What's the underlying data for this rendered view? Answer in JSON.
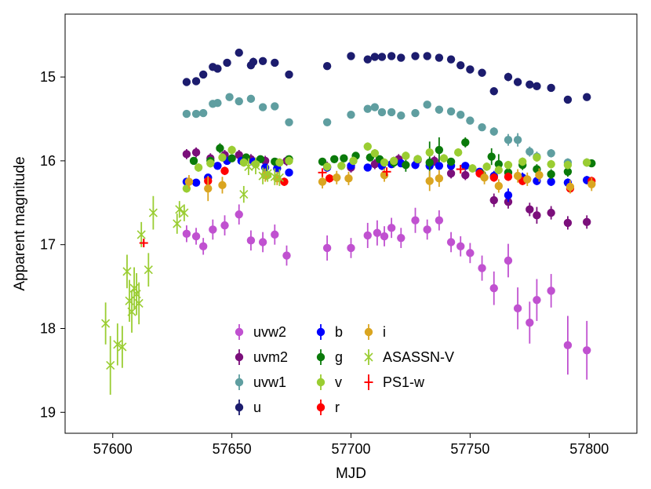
{
  "chart_data": {
    "type": "scatter",
    "xlabel": "MJD",
    "ylabel": "Apparent magnitude",
    "xlim": [
      57580,
      57820
    ],
    "ylim": [
      19.25,
      14.25
    ],
    "y_inverted": true,
    "xticks": [
      57600,
      57650,
      57700,
      57750,
      57800
    ],
    "yticks": [
      15,
      16,
      17,
      18,
      19
    ],
    "grid": false,
    "legend_position": "bottom-center",
    "series": [
      {
        "name": "uvw2",
        "color": "#c051d0",
        "marker": "circle",
        "x": [
          57631,
          57635,
          57638,
          57642,
          57647,
          57653,
          57658,
          57663,
          57668,
          57673,
          57690,
          57700,
          57707,
          57711,
          57714,
          57717,
          57721,
          57727,
          57732,
          57737,
          57742,
          57746,
          57750,
          57755,
          57760,
          57766,
          57770,
          57775,
          57778,
          57784,
          57791,
          57799
        ],
        "y": [
          16.87,
          16.9,
          17.02,
          16.82,
          16.77,
          16.64,
          16.95,
          16.97,
          16.88,
          17.13,
          17.04,
          17.04,
          16.89,
          16.86,
          16.9,
          16.8,
          16.92,
          16.71,
          16.82,
          16.71,
          16.97,
          17.02,
          17.1,
          17.28,
          17.52,
          17.19,
          17.76,
          17.93,
          17.66,
          17.55,
          18.2,
          18.26
        ],
        "yerr": [
          0.1,
          0.1,
          0.1,
          0.12,
          0.12,
          0.12,
          0.12,
          0.12,
          0.12,
          0.12,
          0.15,
          0.12,
          0.15,
          0.15,
          0.12,
          0.12,
          0.12,
          0.15,
          0.12,
          0.12,
          0.12,
          0.12,
          0.12,
          0.15,
          0.2,
          0.2,
          0.25,
          0.25,
          0.25,
          0.2,
          0.35,
          0.35
        ]
      },
      {
        "name": "uvm2",
        "color": "#7b0f7b",
        "marker": "circle",
        "x": [
          57631,
          57635,
          57641,
          57647,
          57653,
          57658,
          57664,
          57669,
          57673,
          57690,
          57700,
          57710,
          57713,
          57720,
          57728,
          57735,
          57742,
          57748,
          57760,
          57766,
          57775,
          57778,
          57784,
          57791,
          57799
        ],
        "y": [
          15.92,
          15.9,
          15.97,
          15.93,
          15.93,
          15.98,
          16.0,
          16.03,
          16.0,
          16.07,
          16.08,
          16.04,
          16.05,
          15.98,
          15.99,
          16.0,
          16.15,
          16.17,
          16.47,
          16.49,
          16.58,
          16.65,
          16.62,
          16.74,
          16.73
        ],
        "yerr": [
          0.06,
          0.06,
          0.06,
          0.06,
          0.06,
          0.06,
          0.06,
          0.06,
          0.06,
          0.06,
          0.06,
          0.06,
          0.06,
          0.06,
          0.06,
          0.06,
          0.06,
          0.06,
          0.08,
          0.08,
          0.08,
          0.1,
          0.08,
          0.08,
          0.08
        ]
      },
      {
        "name": "uvw1",
        "color": "#5f9ea0",
        "marker": "circle",
        "x": [
          57631,
          57635,
          57638,
          57642,
          57644,
          57649,
          57653,
          57658,
          57663,
          57668,
          57674,
          57690,
          57700,
          57707,
          57710,
          57713,
          57717,
          57721,
          57727,
          57732,
          57737,
          57742,
          57746,
          57750,
          57755,
          57760,
          57766,
          57770,
          57775,
          57778,
          57784,
          57791,
          57799
        ],
        "y": [
          15.44,
          15.44,
          15.43,
          15.32,
          15.31,
          15.24,
          15.29,
          15.26,
          15.36,
          15.35,
          15.54,
          15.54,
          15.45,
          15.38,
          15.36,
          15.42,
          15.42,
          15.46,
          15.43,
          15.33,
          15.39,
          15.41,
          15.45,
          15.52,
          15.6,
          15.65,
          15.75,
          15.75,
          15.89,
          15.95,
          15.91,
          16.02,
          16.02
        ],
        "yerr": [
          0.04,
          0.04,
          0.04,
          0.04,
          0.04,
          0.04,
          0.04,
          0.04,
          0.04,
          0.04,
          0.04,
          0.04,
          0.04,
          0.04,
          0.04,
          0.04,
          0.04,
          0.04,
          0.04,
          0.04,
          0.04,
          0.04,
          0.04,
          0.04,
          0.04,
          0.05,
          0.07,
          0.08,
          0.06,
          0.06,
          0.05,
          0.05,
          0.05
        ]
      },
      {
        "name": "u",
        "color": "#1c1c6e",
        "marker": "circle",
        "x": [
          57631,
          57635,
          57638,
          57642,
          57644,
          57648,
          57653,
          57658,
          57659,
          57663,
          57668,
          57674,
          57690,
          57700,
          57707,
          57710,
          57713,
          57717,
          57721,
          57727,
          57732,
          57737,
          57742,
          57746,
          57750,
          57755,
          57760,
          57766,
          57770,
          57775,
          57778,
          57784,
          57791,
          57799
        ],
        "y": [
          15.06,
          15.05,
          14.97,
          14.88,
          14.9,
          14.83,
          14.71,
          14.86,
          14.82,
          14.81,
          14.83,
          14.97,
          14.87,
          14.75,
          14.79,
          14.76,
          14.76,
          14.75,
          14.77,
          14.75,
          14.75,
          14.77,
          14.79,
          14.86,
          14.91,
          14.95,
          15.17,
          15.0,
          15.06,
          15.09,
          15.11,
          15.13,
          15.27,
          15.24
        ],
        "yerr": [
          0.03,
          0.03,
          0.03,
          0.03,
          0.03,
          0.03,
          0.03,
          0.03,
          0.05,
          0.03,
          0.03,
          0.03,
          0.03,
          0.03,
          0.03,
          0.03,
          0.03,
          0.03,
          0.03,
          0.03,
          0.03,
          0.03,
          0.03,
          0.03,
          0.03,
          0.03,
          0.04,
          0.05,
          0.04,
          0.04,
          0.04,
          0.04,
          0.04,
          0.04
        ]
      },
      {
        "name": "b",
        "color": "#0000ff",
        "marker": "circle",
        "x": [
          57631,
          57635,
          57640,
          57644,
          57648,
          57654,
          57659,
          57664,
          57669,
          57674,
          57690,
          57700,
          57707,
          57713,
          57717,
          57721,
          57727,
          57733,
          57737,
          57742,
          57748,
          57754,
          57760,
          57766,
          57772,
          57778,
          57784,
          57791,
          57799
        ],
        "y": [
          16.25,
          16.26,
          16.2,
          16.06,
          16.0,
          16.0,
          16.01,
          16.08,
          16.09,
          16.14,
          16.08,
          16.06,
          16.08,
          16.06,
          16.04,
          16.03,
          16.05,
          16.06,
          16.06,
          16.06,
          16.06,
          16.13,
          16.18,
          16.41,
          16.2,
          16.24,
          16.25,
          16.26,
          16.23
        ],
        "yerr": [
          0.04,
          0.04,
          0.04,
          0.04,
          0.04,
          0.04,
          0.04,
          0.04,
          0.04,
          0.04,
          0.04,
          0.04,
          0.04,
          0.04,
          0.04,
          0.04,
          0.04,
          0.04,
          0.04,
          0.04,
          0.04,
          0.04,
          0.06,
          0.08,
          0.06,
          0.05,
          0.05,
          0.05,
          0.05
        ]
      },
      {
        "name": "g",
        "color": "#0a7a0a",
        "marker": "circle",
        "x": [
          57634,
          57641,
          57645,
          57650,
          57656,
          57662,
          57668,
          57674,
          57688,
          57693,
          57697,
          57702,
          57708,
          57712,
          57718,
          57723,
          57728,
          57733,
          57737,
          57742,
          57748,
          57755,
          57759,
          57762,
          57766,
          57772,
          57778,
          57784,
          57791,
          57801
        ],
        "y": [
          16.0,
          16.0,
          15.85,
          15.97,
          15.96,
          15.98,
          16.01,
          15.98,
          16.01,
          15.98,
          15.97,
          15.94,
          15.96,
          15.98,
          16.02,
          16.05,
          15.98,
          16.02,
          15.87,
          16.01,
          15.78,
          16.16,
          15.95,
          16.04,
          16.14,
          16.05,
          16.1,
          16.16,
          16.13,
          16.03
        ],
        "yerr": [
          0.04,
          0.04,
          0.06,
          0.04,
          0.04,
          0.04,
          0.04,
          0.04,
          0.04,
          0.04,
          0.04,
          0.04,
          0.04,
          0.04,
          0.06,
          0.08,
          0.04,
          0.25,
          0.15,
          0.04,
          0.06,
          0.06,
          0.1,
          0.12,
          0.06,
          0.06,
          0.06,
          0.06,
          0.06,
          0.04
        ]
      },
      {
        "name": "v",
        "color": "#9acd32",
        "marker": "circle",
        "x": [
          57631,
          57636,
          57641,
          57646,
          57650,
          57655,
          57660,
          57665,
          57670,
          57674,
          57690,
          57696,
          57701,
          57707,
          57710,
          57714,
          57718,
          57723,
          57728,
          57733,
          57739,
          57745,
          57751,
          57757,
          57762,
          57766,
          57772,
          57778,
          57784,
          57791,
          57799
        ],
        "y": [
          16.33,
          16.08,
          16.03,
          15.96,
          15.87,
          16.02,
          16.04,
          16.17,
          16.02,
          16.0,
          16.07,
          16.06,
          16.0,
          15.83,
          15.91,
          16.02,
          16.0,
          15.94,
          15.98,
          15.9,
          15.97,
          15.9,
          16.09,
          16.07,
          16.11,
          16.05,
          16.01,
          15.96,
          16.04,
          16.05,
          16.02
        ],
        "yerr": [
          0.05,
          0.05,
          0.05,
          0.05,
          0.05,
          0.05,
          0.05,
          0.05,
          0.05,
          0.05,
          0.05,
          0.05,
          0.05,
          0.05,
          0.05,
          0.05,
          0.05,
          0.05,
          0.05,
          0.05,
          0.05,
          0.05,
          0.05,
          0.05,
          0.05,
          0.05,
          0.05,
          0.05,
          0.05,
          0.05,
          0.05
        ]
      },
      {
        "name": "r",
        "color": "#ff0000",
        "marker": "circle",
        "x": [
          57640,
          57647,
          57672,
          57691,
          57754,
          57760,
          57766,
          57772,
          57792,
          57801
        ],
        "y": [
          16.24,
          16.12,
          16.25,
          16.21,
          16.15,
          16.2,
          16.19,
          16.24,
          16.33,
          16.24
        ],
        "yerr": [
          0.05,
          0.05,
          0.05,
          0.05,
          0.05,
          0.05,
          0.05,
          0.05,
          0.05,
          0.05
        ]
      },
      {
        "name": "i",
        "color": "#daa520",
        "marker": "circle",
        "x": [
          57632,
          57640,
          57646,
          57664,
          57669,
          57688,
          57694,
          57699,
          57714,
          57733,
          57737,
          57756,
          57762,
          57770,
          57774,
          57779,
          57792,
          57801
        ],
        "y": [
          16.25,
          16.33,
          16.29,
          16.17,
          16.21,
          16.25,
          16.2,
          16.21,
          16.17,
          16.24,
          16.21,
          16.2,
          16.3,
          16.18,
          16.22,
          16.17,
          16.31,
          16.28
        ],
        "yerr": [
          0.08,
          0.15,
          0.1,
          0.08,
          0.08,
          0.08,
          0.08,
          0.08,
          0.08,
          0.12,
          0.1,
          0.08,
          0.08,
          0.08,
          0.08,
          0.08,
          0.08,
          0.08
        ]
      },
      {
        "name": "ASASSN-V",
        "color": "#9acd32",
        "marker": "x",
        "x": [
          57597,
          57599,
          57602,
          57604,
          57606,
          57607,
          57608,
          57609,
          57610,
          57611,
          57612,
          57615,
          57617,
          57627,
          57628,
          57630,
          57655,
          57657,
          57660,
          57663,
          57665,
          57668,
          57670
        ],
        "y": [
          17.94,
          18.44,
          18.19,
          18.22,
          17.32,
          17.67,
          17.8,
          17.52,
          17.59,
          17.7,
          16.88,
          17.3,
          16.62,
          16.75,
          16.58,
          16.62,
          16.4,
          16.07,
          16.06,
          16.18,
          16.15,
          16.19,
          16.2
        ],
        "yerr": [
          0.25,
          0.35,
          0.25,
          0.25,
          0.2,
          0.25,
          0.25,
          0.25,
          0.25,
          0.25,
          0.15,
          0.2,
          0.2,
          0.12,
          0.1,
          0.1,
          0.1,
          0.1,
          0.1,
          0.1,
          0.1,
          0.1,
          0.1
        ]
      },
      {
        "name": "PS1-w",
        "color": "#ff0000",
        "marker": "plus",
        "x": [
          57613,
          57688,
          57715,
          57746
        ],
        "y": [
          16.98,
          16.14,
          16.13,
          16.1
        ],
        "yerr": [
          0.05,
          0.05,
          0.05,
          0.05
        ]
      }
    ]
  }
}
